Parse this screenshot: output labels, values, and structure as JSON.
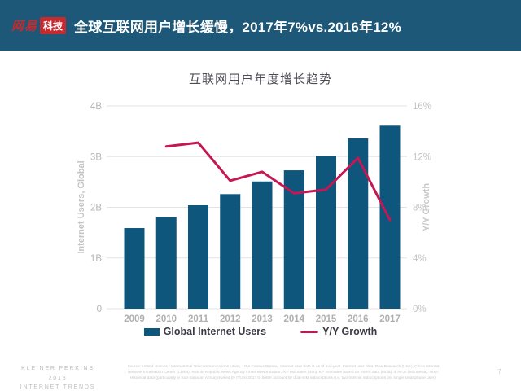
{
  "header": {
    "logo_brand": "网易",
    "logo_sub": "科技",
    "title": "全球互联网用户增长缓慢，2017年7%vs.2016年12%"
  },
  "chart_data": {
    "type": "bar",
    "title": "互联网用户年度增长趋势",
    "categories": [
      "2009",
      "2010",
      "2011",
      "2012",
      "2013",
      "2014",
      "2015",
      "2016",
      "2017"
    ],
    "series": [
      {
        "name": "Global Internet Users",
        "type": "bar",
        "axis": "left",
        "unit": "B",
        "color": "#0F567D",
        "values": [
          1.59,
          1.81,
          2.04,
          2.26,
          2.51,
          2.73,
          3.01,
          3.36,
          3.61
        ]
      },
      {
        "name": "Y/Y Growth",
        "type": "line",
        "axis": "right",
        "unit": "%",
        "color": "#C41753",
        "values": [
          null,
          12.8,
          13.1,
          10.1,
          10.8,
          9.1,
          9.4,
          11.9,
          7.0
        ]
      }
    ],
    "left_axis": {
      "label": "Internet Users, Global",
      "min": 0,
      "max": 4,
      "ticks": [
        "4B",
        "3B",
        "2B",
        "1B",
        "0"
      ]
    },
    "right_axis": {
      "label": "Y/Y Growth",
      "min": 0,
      "max": 16,
      "ticks": [
        "16%",
        "12%",
        "8%",
        "4%",
        "0%"
      ]
    },
    "grid": true,
    "legend_position": "bottom"
  },
  "footer": {
    "brand_lines": [
      "KLEINER PERKINS",
      "2018",
      "INTERNET TRENDS"
    ],
    "source": "Source: United Nations / International Telecommunications Union, USA Census Bureau. Internet user data is as of mid-year. Internet user data: Pew Research (USA), China Internet Network Information Center (China), Islamic Republic News Agency / InternetWorldStats / KP estimates (Iran). KP estimates based on IAMAI data (India), & APJII (Indonesia). Note: Historical data (particularly in Sub-Saharan Africa) revised by ITU in 2017 to better account for dual-SIM subscriptions (i.e. two Internet subscriptions per single smartphone user).",
    "page_number": "7"
  }
}
